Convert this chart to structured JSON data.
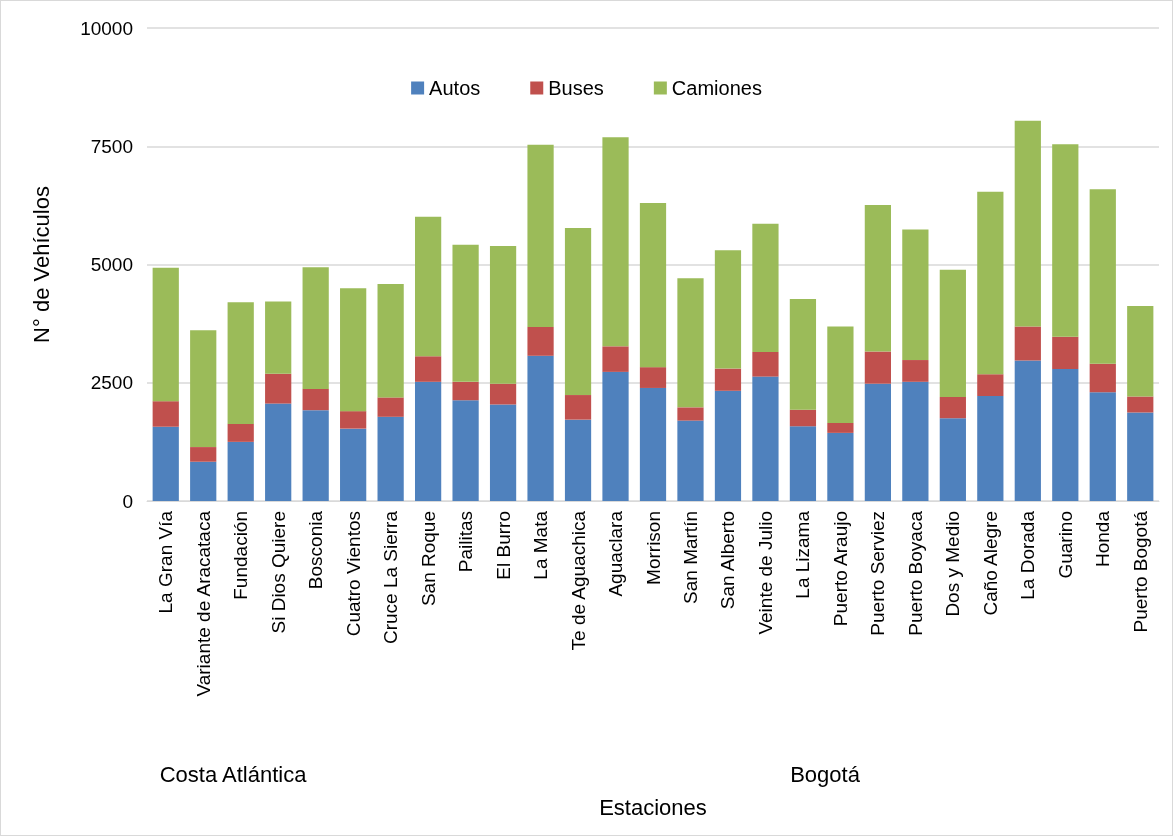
{
  "chart_data": {
    "type": "bar",
    "stacked": true,
    "xlabel": "Estaciones",
    "ylabel": "N° de Vehículos",
    "categories": [
      "La Gran Vía",
      "Variante de Aracataca",
      "Fundación",
      "Si Dios Quiere",
      "Bosconia",
      "Cuatro Vientos",
      "Cruce La Sierra",
      "San Roque",
      "Pailitas",
      "El Burro",
      "La Mata",
      "Te de Aguachica",
      "Aguaclara",
      "Morrison",
      "San Martín",
      "San Alberto",
      "Veinte de Julio",
      "La Lizama",
      "Puerto Araujo",
      "Puerto Serviez",
      "Puerto Boyaca",
      "Dos y Medio",
      "Caño Alegre",
      "La Dorada",
      "Guarino",
      "Honda",
      "Puerto Bogotá"
    ],
    "series": [
      {
        "name": "Autos",
        "color": "#4f81bd",
        "values": [
          1570,
          830,
          1250,
          2060,
          1920,
          1530,
          1780,
          2520,
          2130,
          2040,
          3070,
          1720,
          2730,
          2390,
          1700,
          2330,
          2630,
          1580,
          1440,
          2480,
          2520,
          1750,
          2220,
          2970,
          2790,
          2300,
          1870
        ]
      },
      {
        "name": "Buses",
        "color": "#c0504d",
        "values": [
          540,
          310,
          380,
          630,
          450,
          370,
          410,
          540,
          390,
          440,
          610,
          520,
          540,
          440,
          280,
          470,
          520,
          350,
          210,
          680,
          460,
          450,
          460,
          720,
          680,
          600,
          340
        ]
      },
      {
        "name": "Camiones",
        "color": "#9bbb59",
        "values": [
          2820,
          2470,
          2570,
          1530,
          2570,
          2600,
          2400,
          2950,
          2900,
          2910,
          3850,
          3530,
          4420,
          3470,
          2730,
          2500,
          2710,
          2340,
          2040,
          3100,
          2760,
          2690,
          3860,
          4350,
          4070,
          3690,
          1910
        ]
      }
    ],
    "ylim": [
      0,
      10000
    ],
    "yticks": [
      0,
      2500,
      5000,
      7500,
      10000
    ],
    "grid": "y",
    "legend": "top",
    "annotations": [
      "Costa Atlántica",
      "Bogotá"
    ]
  }
}
